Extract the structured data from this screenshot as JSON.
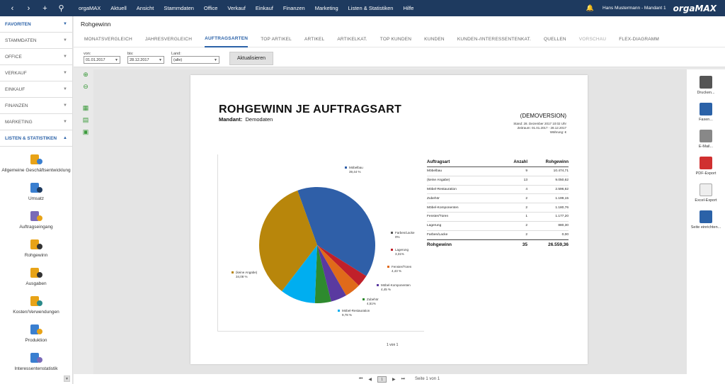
{
  "window": {
    "menu": [
      "orgaMAX",
      "Aktuell",
      "Ansicht",
      "Stammdaten",
      "Office",
      "Verkauf",
      "Einkauf",
      "Finanzen",
      "Marketing",
      "Listen & Statistiken",
      "Hilfe"
    ],
    "user": "Hans Mustermann - Mandant 1",
    "logo": "orgaMAX"
  },
  "sidebar": {
    "sections": [
      {
        "label": "FAVORITEN",
        "active": true
      },
      {
        "label": "STAMMDATEN"
      },
      {
        "label": "OFFICE"
      },
      {
        "label": "VERKAUF"
      },
      {
        "label": "EINKAUF"
      },
      {
        "label": "FINANZEN"
      },
      {
        "label": "MARKETING"
      },
      {
        "label": "LISTEN & STATISTIKEN",
        "active": true
      }
    ],
    "items": [
      "Allgemeine Geschäftsentwicklung",
      "Umsatz",
      "Auftragseingang",
      "Rohgewinn",
      "Ausgaben",
      "Kosten/Verwendungen",
      "Produktion",
      "Interessentenstatistik"
    ]
  },
  "page_title": "Rohgewinn",
  "tabs": [
    {
      "label": "MONATSVERGLEICH"
    },
    {
      "label": "JAHRESVERGLEICH"
    },
    {
      "label": "AUFTRAGSARTEN",
      "active": true
    },
    {
      "label": "TOP ARTIKEL"
    },
    {
      "label": "ARTIKEL"
    },
    {
      "label": "ARTIKELKAT."
    },
    {
      "label": "TOP KUNDEN"
    },
    {
      "label": "KUNDEN"
    },
    {
      "label": "KUNDEN-/INTERESSENTENKAT."
    },
    {
      "label": "QUELLEN"
    },
    {
      "label": "VORSCHAU",
      "dim": true
    },
    {
      "label": "FLEX-DIAGRAMM"
    }
  ],
  "filters": {
    "from_label": "von:",
    "from_value": "01.01.2017",
    "to_label": "bis:",
    "to_value": "28.12.2017",
    "country_label": "Land:",
    "country_value": "(alle)",
    "update_button": "Aktualisieren"
  },
  "report": {
    "title": "ROHGEWINN JE AUFTRAGSART",
    "mandant_label": "Mandant:",
    "mandant_value": "Demodaten",
    "demo": "(DEMOVERSION)",
    "stand": "Stand: 28. Dezember 2017 10:02 Uhr",
    "zeitraum": "Zeitraum: 01.01.2017 - 28.12.2017",
    "waehrung": "Währung: €",
    "table_headers": [
      "Auftragsart",
      "Anzahl",
      "Rohgewinn"
    ],
    "rows": [
      [
        "Möbelbau",
        "9",
        "10.474,71"
      ],
      [
        "(keine Angabe)",
        "13",
        "9.050,62"
      ],
      [
        "Möbel-Restauration",
        "4",
        "2.596,62"
      ],
      [
        "Zubehör",
        "2",
        "1.199,15"
      ],
      [
        "Möbel-Komponenten",
        "2",
        "1.180,76"
      ],
      [
        "Fenster/Türen",
        "1",
        "1.177,20"
      ],
      [
        "Lagerung",
        "2",
        "880,30"
      ],
      [
        "Farben/Lacke",
        "2",
        "0,00"
      ]
    ],
    "total": [
      "Rohgewinn",
      "35",
      "26.559,36"
    ],
    "page_num": "1 von 1"
  },
  "chart_data": {
    "type": "pie",
    "slices": [
      {
        "label": "Möbelbau",
        "value": 39.44,
        "pct": "39,44 %",
        "color": "#2f5fa8"
      },
      {
        "label": "Farben/Lacke",
        "value": 0,
        "pct": "0%",
        "color": "#555555"
      },
      {
        "label": "Lagerung",
        "value": 3.31,
        "pct": "3,31%",
        "color": "#c0202a"
      },
      {
        "label": "Fenster/Türen",
        "value": 4.43,
        "pct": "4,43 %",
        "color": "#e06a1a"
      },
      {
        "label": "Möbel-Komponenten",
        "value": 4.45,
        "pct": "4,45 %",
        "color": "#5a3aa0"
      },
      {
        "label": "Zubehör",
        "value": 4.51,
        "pct": "4,51%",
        "color": "#2e8a2e"
      },
      {
        "label": "Möbel-Restauration",
        "value": 9.78,
        "pct": "9,78 %",
        "color": "#00aef0"
      },
      {
        "label": "(keine Angabe)",
        "value": 34.08,
        "pct": "34,08 %",
        "color": "#b8860b"
      }
    ]
  },
  "right_tools": [
    "Drucken...",
    "Faxen...",
    "E-Mail...",
    "PDF-Export",
    "Excel-Export",
    "Seite einrichten..."
  ],
  "pager": {
    "label": "Seite 1 von 1",
    "value": "1"
  }
}
